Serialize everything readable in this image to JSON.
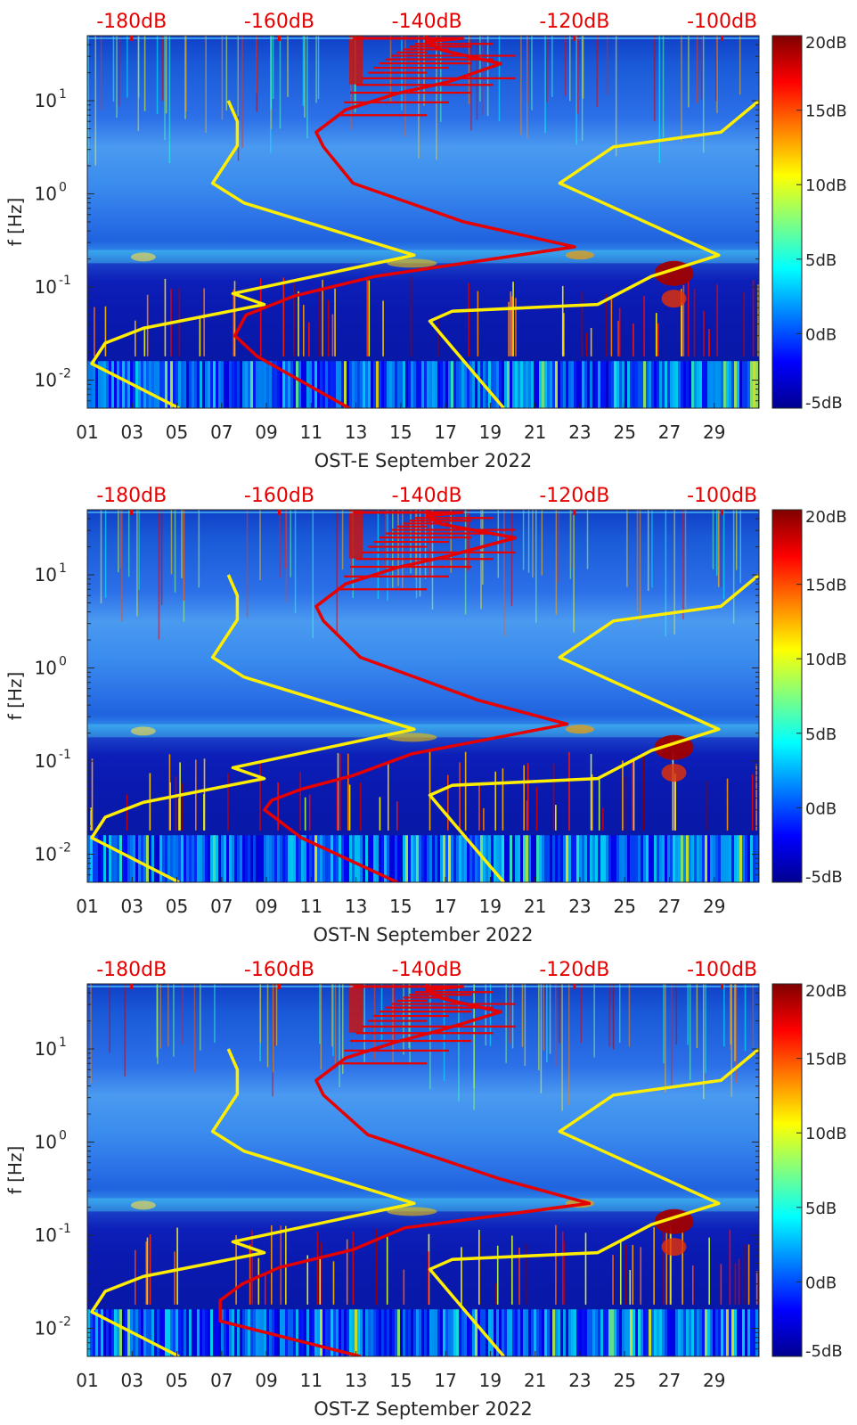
{
  "figure": {
    "colormap": "jet",
    "accent_power_color": "#e60000",
    "accent_noise_color": "#ffee00"
  },
  "chart_data": [
    {
      "type": "heatmap",
      "title": "OST-E September 2022",
      "xlabel": "OST-E September 2022",
      "ylabel": "f [Hz]",
      "x_ticks": [
        "01",
        "03",
        "05",
        "07",
        "09",
        "11",
        "13",
        "15",
        "17",
        "19",
        "21",
        "23",
        "25",
        "27",
        "29"
      ],
      "x_range_days": [
        1,
        31
      ],
      "y_scale": "log",
      "y_range_hz": [
        0.005,
        50
      ],
      "y_ticks": [
        {
          "value": 0.01,
          "base": "10",
          "exp": "-2"
        },
        {
          "value": 0.1,
          "base": "10",
          "exp": "-1"
        },
        {
          "value": 1,
          "base": "10",
          "exp": "0"
        },
        {
          "value": 10,
          "base": "10",
          "exp": "1"
        }
      ],
      "colorbar": {
        "range_db": [
          -5,
          20
        ],
        "ticks": [
          "20dB",
          "15dB",
          "10dB",
          "5dB",
          "0dB",
          "-5dB"
        ]
      },
      "top_axis": {
        "range_db": [
          -186,
          -95
        ],
        "ticks": [
          {
            "db": -180,
            "label": "-180dB"
          },
          {
            "db": -160,
            "label": "-160dB"
          },
          {
            "db": -140,
            "label": "-140dB"
          },
          {
            "db": -120,
            "label": "-120dB"
          },
          {
            "db": -100,
            "label": "-100dB"
          }
        ]
      },
      "noise_model_curves": [
        {
          "name": "low-noise-model",
          "color": "#ffee00",
          "points_day_hz": [
            [
              5.1,
              0.005
            ],
            [
              1.2,
              0.015
            ],
            [
              1.8,
              0.025
            ],
            [
              3.5,
              0.036
            ],
            [
              8.9,
              0.065
            ],
            [
              7.5,
              0.085
            ],
            [
              15.6,
              0.22
            ],
            [
              8,
              0.8
            ],
            [
              6.6,
              1.3
            ],
            [
              7.7,
              3.3
            ],
            [
              7.7,
              6
            ],
            [
              7.3,
              10
            ]
          ]
        },
        {
          "name": "high-noise-model",
          "color": "#ffee00",
          "points_day_hz": [
            [
              19.6,
              0.005
            ],
            [
              16.3,
              0.043
            ],
            [
              17.3,
              0.055
            ],
            [
              23.8,
              0.065
            ],
            [
              26.2,
              0.13
            ],
            [
              29.2,
              0.22
            ],
            [
              22.1,
              1.3
            ],
            [
              24.5,
              3.2
            ],
            [
              29.3,
              4.6
            ],
            [
              31,
              10
            ]
          ]
        }
      ],
      "power_curve": {
        "name": "mean-psd-curve",
        "color": "#e60000",
        "points_db_hz": [
          [
            -150.5,
            0.005
          ],
          [
            -163,
            0.018
          ],
          [
            -166,
            0.03
          ],
          [
            -164.5,
            0.05
          ],
          [
            -158,
            0.08
          ],
          [
            -147,
            0.13
          ],
          [
            -120,
            0.27
          ],
          [
            -135,
            0.5
          ],
          [
            -150,
            1.3
          ],
          [
            -154,
            3.2
          ],
          [
            -155,
            4.6
          ],
          [
            -151,
            8
          ],
          [
            -144,
            12
          ],
          [
            -137,
            16
          ],
          [
            -130,
            25
          ],
          [
            -138,
            35
          ],
          [
            -140,
            43
          ],
          [
            -135,
            47
          ]
        ]
      }
    },
    {
      "type": "heatmap",
      "title": "OST-N September 2022",
      "xlabel": "OST-N September 2022",
      "ylabel": "f [Hz]",
      "x_ticks": [
        "01",
        "03",
        "05",
        "07",
        "09",
        "11",
        "13",
        "15",
        "17",
        "19",
        "21",
        "23",
        "25",
        "27",
        "29"
      ],
      "x_range_days": [
        1,
        31
      ],
      "y_scale": "log",
      "y_range_hz": [
        0.005,
        50
      ],
      "y_ticks": [
        {
          "value": 0.01,
          "base": "10",
          "exp": "-2"
        },
        {
          "value": 0.1,
          "base": "10",
          "exp": "-1"
        },
        {
          "value": 1,
          "base": "10",
          "exp": "0"
        },
        {
          "value": 10,
          "base": "10",
          "exp": "1"
        }
      ],
      "colorbar": {
        "range_db": [
          -5,
          20
        ],
        "ticks": [
          "20dB",
          "15dB",
          "10dB",
          "5dB",
          "0dB",
          "-5dB"
        ]
      },
      "top_axis": {
        "range_db": [
          -186,
          -95
        ],
        "ticks": [
          {
            "db": -180,
            "label": "-180dB"
          },
          {
            "db": -160,
            "label": "-160dB"
          },
          {
            "db": -140,
            "label": "-140dB"
          },
          {
            "db": -120,
            "label": "-120dB"
          },
          {
            "db": -100,
            "label": "-100dB"
          }
        ]
      },
      "noise_model_curves": [
        {
          "name": "low-noise-model",
          "color": "#ffee00",
          "points_day_hz": [
            [
              5.1,
              0.005
            ],
            [
              1.2,
              0.015
            ],
            [
              1.8,
              0.025
            ],
            [
              3.5,
              0.036
            ],
            [
              8.9,
              0.065
            ],
            [
              7.5,
              0.085
            ],
            [
              15.6,
              0.22
            ],
            [
              8,
              0.8
            ],
            [
              6.6,
              1.3
            ],
            [
              7.7,
              3.3
            ],
            [
              7.7,
              6
            ],
            [
              7.3,
              10
            ]
          ]
        },
        {
          "name": "high-noise-model",
          "color": "#ffee00",
          "points_day_hz": [
            [
              19.6,
              0.005
            ],
            [
              16.3,
              0.043
            ],
            [
              17.3,
              0.055
            ],
            [
              23.8,
              0.065
            ],
            [
              26.2,
              0.13
            ],
            [
              29.2,
              0.22
            ],
            [
              22.1,
              1.3
            ],
            [
              24.5,
              3.2
            ],
            [
              29.3,
              4.6
            ],
            [
              31,
              10
            ]
          ]
        }
      ],
      "power_curve": {
        "name": "mean-psd-curve",
        "color": "#e60000",
        "points_db_hz": [
          [
            -144,
            0.005
          ],
          [
            -157,
            0.015
          ],
          [
            -162,
            0.03
          ],
          [
            -161,
            0.038
          ],
          [
            -157,
            0.05
          ],
          [
            -150,
            0.07
          ],
          [
            -142,
            0.12
          ],
          [
            -121,
            0.25
          ],
          [
            -133,
            0.45
          ],
          [
            -149,
            1.3
          ],
          [
            -154,
            3.2
          ],
          [
            -155,
            4.6
          ],
          [
            -151,
            8
          ],
          [
            -144,
            12
          ],
          [
            -137,
            16
          ],
          [
            -128,
            25
          ],
          [
            -138,
            35
          ],
          [
            -140,
            43
          ],
          [
            -135,
            47
          ]
        ]
      }
    },
    {
      "type": "heatmap",
      "title": "OST-Z September 2022",
      "xlabel": "OST-Z September 2022",
      "ylabel": "f [Hz]",
      "x_ticks": [
        "01",
        "03",
        "05",
        "07",
        "09",
        "11",
        "13",
        "15",
        "17",
        "19",
        "21",
        "23",
        "25",
        "27",
        "29"
      ],
      "x_range_days": [
        1,
        31
      ],
      "y_scale": "log",
      "y_range_hz": [
        0.005,
        50
      ],
      "y_ticks": [
        {
          "value": 0.01,
          "base": "10",
          "exp": "-2"
        },
        {
          "value": 0.1,
          "base": "10",
          "exp": "-1"
        },
        {
          "value": 1,
          "base": "10",
          "exp": "0"
        },
        {
          "value": 10,
          "base": "10",
          "exp": "1"
        }
      ],
      "colorbar": {
        "range_db": [
          -5,
          20
        ],
        "ticks": [
          "20dB",
          "15dB",
          "10dB",
          "5dB",
          "0dB",
          "-5dB"
        ]
      },
      "top_axis": {
        "range_db": [
          -186,
          -95
        ],
        "ticks": [
          {
            "db": -180,
            "label": "-180dB"
          },
          {
            "db": -160,
            "label": "-160dB"
          },
          {
            "db": -140,
            "label": "-140dB"
          },
          {
            "db": -120,
            "label": "-120dB"
          },
          {
            "db": -100,
            "label": "-100dB"
          }
        ]
      },
      "noise_model_curves": [
        {
          "name": "low-noise-model",
          "color": "#ffee00",
          "points_day_hz": [
            [
              5.1,
              0.005
            ],
            [
              1.2,
              0.015
            ],
            [
              1.8,
              0.025
            ],
            [
              3.5,
              0.036
            ],
            [
              8.9,
              0.065
            ],
            [
              7.5,
              0.085
            ],
            [
              15.6,
              0.22
            ],
            [
              8,
              0.8
            ],
            [
              6.6,
              1.3
            ],
            [
              7.7,
              3.3
            ],
            [
              7.7,
              6
            ],
            [
              7.3,
              10
            ]
          ]
        },
        {
          "name": "high-noise-model",
          "color": "#ffee00",
          "points_day_hz": [
            [
              19.6,
              0.005
            ],
            [
              16.3,
              0.043
            ],
            [
              17.3,
              0.055
            ],
            [
              23.8,
              0.065
            ],
            [
              26.2,
              0.13
            ],
            [
              29.2,
              0.22
            ],
            [
              22.1,
              1.3
            ],
            [
              24.5,
              3.2
            ],
            [
              29.3,
              4.6
            ],
            [
              31,
              10
            ]
          ]
        }
      ],
      "power_curve": {
        "name": "mean-psd-curve",
        "color": "#e60000",
        "points_db_hz": [
          [
            -149,
            0.005
          ],
          [
            -168,
            0.012
          ],
          [
            -168,
            0.02
          ],
          [
            -165,
            0.03
          ],
          [
            -160,
            0.045
          ],
          [
            -150,
            0.07
          ],
          [
            -143,
            0.12
          ],
          [
            -118,
            0.22
          ],
          [
            -130,
            0.4
          ],
          [
            -148,
            1.2
          ],
          [
            -154,
            3.2
          ],
          [
            -155,
            4.6
          ],
          [
            -151,
            8
          ],
          [
            -144,
            12
          ],
          [
            -138,
            16
          ],
          [
            -130,
            25
          ],
          [
            -138,
            35
          ],
          [
            -140,
            43
          ],
          [
            -135,
            47
          ]
        ]
      }
    }
  ]
}
